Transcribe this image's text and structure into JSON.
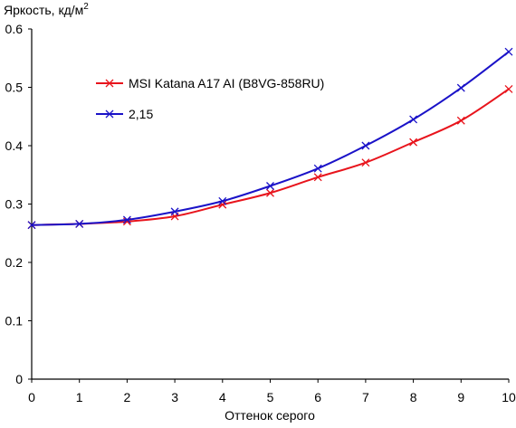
{
  "chart_data": {
    "type": "line",
    "ylabel": "Яркость, кд/м",
    "ylabel_superscript": "2",
    "xlabel": "Оттенок серого",
    "x": [
      0,
      1,
      2,
      3,
      4,
      5,
      6,
      7,
      8,
      9,
      10
    ],
    "xlim": [
      0,
      10
    ],
    "ylim": [
      0,
      0.6
    ],
    "x_ticks": [
      0,
      1,
      2,
      3,
      4,
      5,
      6,
      7,
      8,
      9,
      10
    ],
    "y_ticks": [
      0,
      0.1,
      0.2,
      0.3,
      0.4,
      0.5,
      0.6
    ],
    "x_tick_labels": [
      "0",
      "1",
      "2",
      "3",
      "4",
      "5",
      "6",
      "7",
      "8",
      "9",
      "10"
    ],
    "y_tick_labels": [
      "0",
      "0.1",
      "0.2",
      "0.3",
      "0.4",
      "0.5",
      "0.6"
    ],
    "grid": false,
    "legend_position": "upper-left inside plot",
    "series": [
      {
        "name": "MSI Katana A17 AI (B8VG-858RU)",
        "color": "#e8141c",
        "marker": "x",
        "values": [
          0.264,
          0.266,
          0.27,
          0.279,
          0.299,
          0.319,
          0.346,
          0.371,
          0.406,
          0.443,
          0.497
        ]
      },
      {
        "name": "2,15",
        "color": "#1a12c8",
        "marker": "x",
        "values": [
          0.264,
          0.266,
          0.273,
          0.287,
          0.305,
          0.331,
          0.361,
          0.4,
          0.445,
          0.499,
          0.561
        ]
      }
    ]
  }
}
